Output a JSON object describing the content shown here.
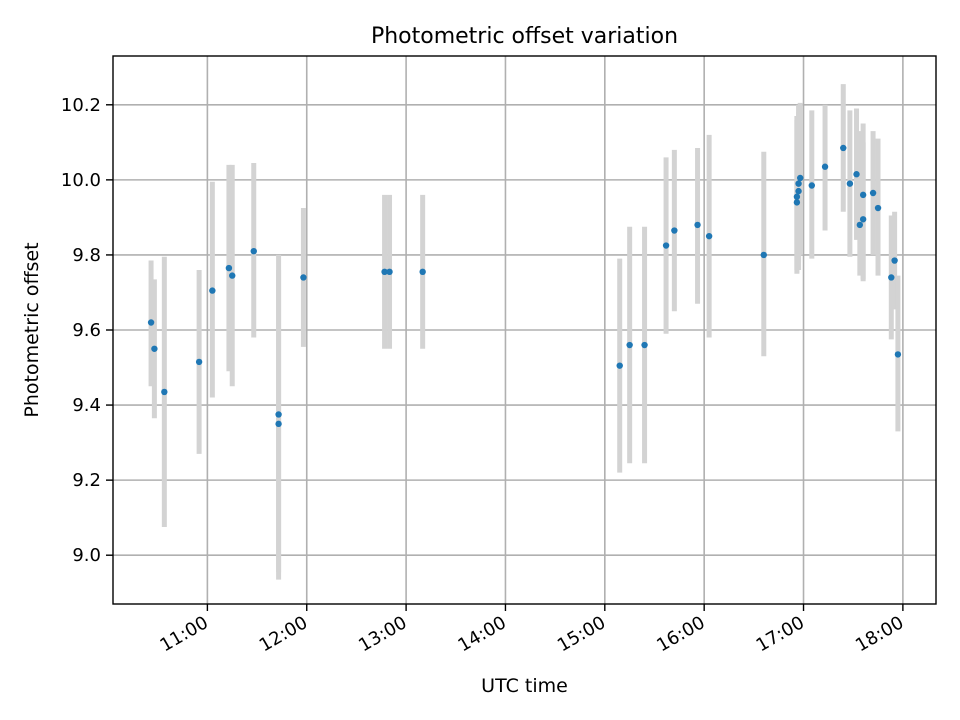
{
  "chart_data": {
    "type": "scatter",
    "title": "Photometric offset variation",
    "xlabel": "UTC time",
    "ylabel": "Photometric offset",
    "xlim": [
      "10:03",
      "18:20"
    ],
    "ylim": [
      8.87,
      10.33
    ],
    "x_ticks": [
      "11:00",
      "12:00",
      "13:00",
      "14:00",
      "15:00",
      "16:00",
      "17:00",
      "18:00"
    ],
    "y_ticks": [
      9.0,
      9.2,
      9.4,
      9.6,
      9.8,
      10.0,
      10.2
    ],
    "grid": true,
    "marker_color": "#1f77b4",
    "errorbar_color": "#d3d3d3",
    "points": [
      {
        "time": "10:26",
        "y": 9.62,
        "err_low": 9.45,
        "err_high": 9.785
      },
      {
        "time": "10:28",
        "y": 9.55,
        "err_low": 9.365,
        "err_high": 9.735
      },
      {
        "time": "10:34",
        "y": 9.435,
        "err_low": 9.075,
        "err_high": 9.795
      },
      {
        "time": "10:55",
        "y": 9.515,
        "err_low": 9.27,
        "err_high": 9.76
      },
      {
        "time": "11:03",
        "y": 9.705,
        "err_low": 9.42,
        "err_high": 9.995
      },
      {
        "time": "11:13",
        "y": 9.765,
        "err_low": 9.49,
        "err_high": 10.04
      },
      {
        "time": "11:15",
        "y": 9.745,
        "err_low": 9.45,
        "err_high": 10.04
      },
      {
        "time": "11:28",
        "y": 9.81,
        "err_low": 9.58,
        "err_high": 10.045
      },
      {
        "time": "11:43",
        "y": 9.375,
        "err_low": 8.955,
        "err_high": 9.8
      },
      {
        "time": "11:43",
        "y": 9.35,
        "err_low": 8.935,
        "err_high": 9.76
      },
      {
        "time": "11:58",
        "y": 9.74,
        "err_low": 9.555,
        "err_high": 9.925
      },
      {
        "time": "12:47",
        "y": 9.755,
        "err_low": 9.55,
        "err_high": 9.96
      },
      {
        "time": "12:50",
        "y": 9.755,
        "err_low": 9.55,
        "err_high": 9.96
      },
      {
        "time": "13:10",
        "y": 9.755,
        "err_low": 9.55,
        "err_high": 9.96
      },
      {
        "time": "15:09",
        "y": 9.505,
        "err_low": 9.22,
        "err_high": 9.79
      },
      {
        "time": "15:15",
        "y": 9.56,
        "err_low": 9.245,
        "err_high": 9.875
      },
      {
        "time": "15:24",
        "y": 9.56,
        "err_low": 9.245,
        "err_high": 9.875
      },
      {
        "time": "15:37",
        "y": 9.825,
        "err_low": 9.59,
        "err_high": 10.06
      },
      {
        "time": "15:42",
        "y": 9.865,
        "err_low": 9.65,
        "err_high": 10.08
      },
      {
        "time": "15:56",
        "y": 9.88,
        "err_low": 9.67,
        "err_high": 10.085
      },
      {
        "time": "16:03",
        "y": 9.85,
        "err_low": 9.58,
        "err_high": 10.12
      },
      {
        "time": "16:36",
        "y": 9.8,
        "err_low": 9.53,
        "err_high": 10.075
      },
      {
        "time": "16:56",
        "y": 9.94,
        "err_low": 9.75,
        "err_high": 10.16
      },
      {
        "time": "16:56",
        "y": 9.955,
        "err_low": 9.76,
        "err_high": 10.17
      },
      {
        "time": "16:57",
        "y": 9.97,
        "err_low": 9.76,
        "err_high": 10.18
      },
      {
        "time": "16:57",
        "y": 9.99,
        "err_low": 9.78,
        "err_high": 10.2
      },
      {
        "time": "16:58",
        "y": 10.005,
        "err_low": 9.8,
        "err_high": 10.205
      },
      {
        "time": "17:05",
        "y": 9.985,
        "err_low": 9.79,
        "err_high": 10.185
      },
      {
        "time": "17:13",
        "y": 10.035,
        "err_low": 9.865,
        "err_high": 10.2
      },
      {
        "time": "17:24",
        "y": 10.085,
        "err_low": 9.915,
        "err_high": 10.255
      },
      {
        "time": "17:28",
        "y": 9.99,
        "err_low": 9.795,
        "err_high": 10.185
      },
      {
        "time": "17:32",
        "y": 10.015,
        "err_low": 9.84,
        "err_high": 10.19
      },
      {
        "time": "17:34",
        "y": 9.88,
        "err_low": 9.745,
        "err_high": 10.13
      },
      {
        "time": "17:36",
        "y": 9.895,
        "err_low": 9.735,
        "err_high": 10.1
      },
      {
        "time": "17:36",
        "y": 9.96,
        "err_low": 9.73,
        "err_high": 10.15
      },
      {
        "time": "17:42",
        "y": 9.965,
        "err_low": 9.8,
        "err_high": 10.13
      },
      {
        "time": "17:45",
        "y": 9.925,
        "err_low": 9.745,
        "err_high": 10.11
      },
      {
        "time": "17:53",
        "y": 9.74,
        "err_low": 9.575,
        "err_high": 9.905
      },
      {
        "time": "17:55",
        "y": 9.785,
        "err_low": 9.655,
        "err_high": 9.915
      },
      {
        "time": "17:57",
        "y": 9.535,
        "err_low": 9.33,
        "err_high": 9.745
      }
    ]
  }
}
